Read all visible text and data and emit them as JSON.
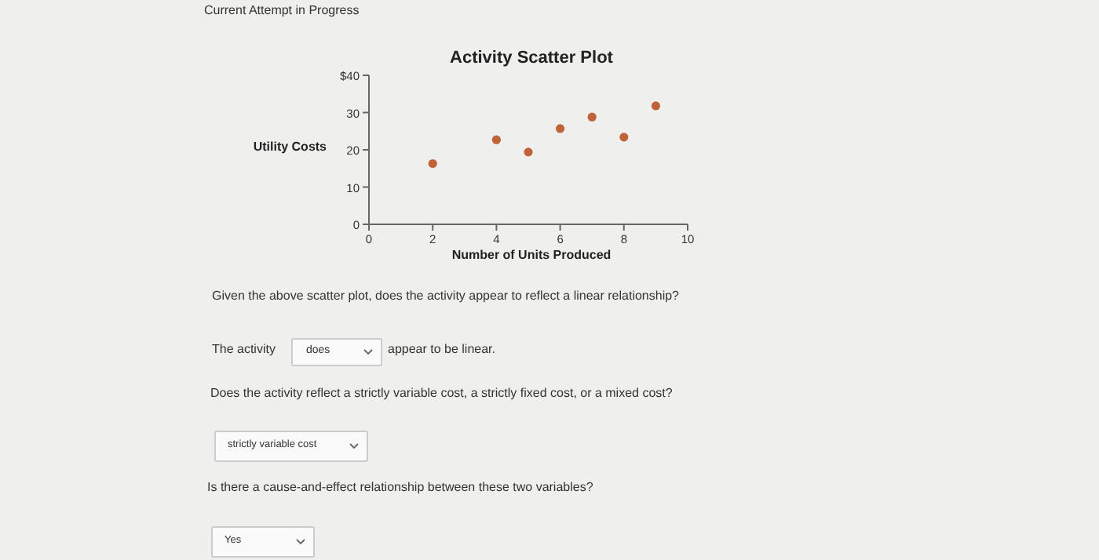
{
  "chart_data": {
    "type": "scatter",
    "title": "Activity Scatter Plot",
    "xlabel": "Number of Units Produced",
    "ylabel": "Utility Costs",
    "x": [
      2,
      4,
      5,
      6,
      7,
      8,
      9
    ],
    "series": [
      {
        "color": "#c0623a",
        "values": [
          16.3,
          22.7,
          19.4,
          25.7,
          28.8,
          23.4,
          31.8
        ]
      }
    ],
    "xlim": [
      0,
      10
    ],
    "xticks": [
      0,
      2,
      4,
      6,
      8,
      10
    ],
    "ylim": [
      0,
      40
    ],
    "yticks": [
      0,
      10,
      20,
      30,
      {
        "value": 40,
        "label": "$40"
      }
    ],
    "marker": "circle",
    "annotations": [
      "Current Attempt in Progress",
      "Given the above scatter plot, does the activity appear to reflect a linear relationship?",
      "The activity",
      "does",
      "appear to be linear.",
      "Does the activity reflect a strictly variable cost, a strictly fixed cost, or a mixed cost?",
      "strictly variable cost",
      "Is there a cause-and-effect relationship between these two variables?",
      "Yes"
    ]
  }
}
